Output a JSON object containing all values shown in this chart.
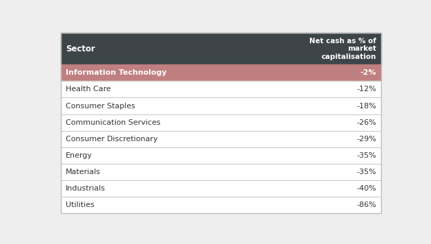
{
  "header_sector": "Sector",
  "header_value": "Net cash as % of\nmarket\ncapitalisation",
  "rows": [
    {
      "sector": "Information Technology",
      "value": "-2%",
      "highlight": true
    },
    {
      "sector": "Health Care",
      "value": "-12%",
      "highlight": false
    },
    {
      "sector": "Consumer Staples",
      "value": "-18%",
      "highlight": false
    },
    {
      "sector": "Communication Services",
      "value": "-26%",
      "highlight": false
    },
    {
      "sector": "Consumer Discretionary",
      "value": "-29%",
      "highlight": false
    },
    {
      "sector": "Energy",
      "value": "-35%",
      "highlight": false
    },
    {
      "sector": "Materials",
      "value": "-35%",
      "highlight": false
    },
    {
      "sector": "Industrials",
      "value": "-40%",
      "highlight": false
    },
    {
      "sector": "Utilities",
      "value": "-86%",
      "highlight": false
    }
  ],
  "header_bg": "#3d4549",
  "header_text_color": "#ffffff",
  "highlight_bg": "#c07f80",
  "highlight_text_color": "#ffffff",
  "row_bg": "#ffffff",
  "row_text_color": "#333333",
  "divider_color": "#bbbbbb",
  "outer_border_color": "#bbbbbb",
  "fig_bg": "#eeeeee"
}
